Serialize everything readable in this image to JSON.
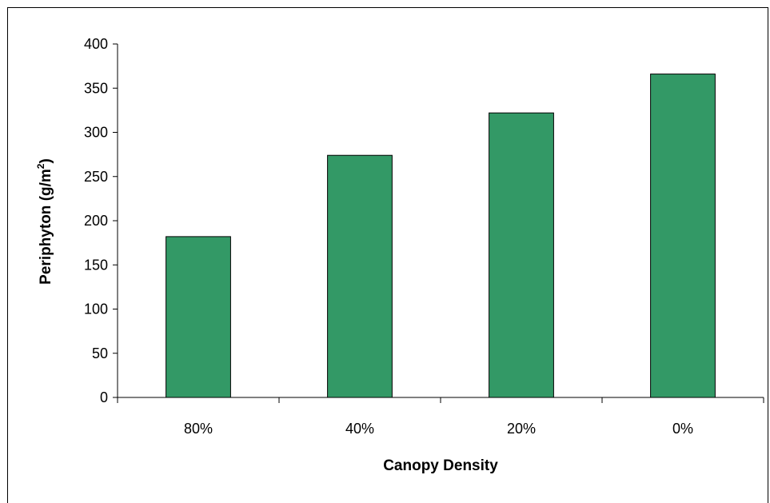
{
  "chart_data": {
    "type": "bar",
    "categories": [
      "80%",
      "40%",
      "20%",
      "0%"
    ],
    "values": [
      182,
      274,
      322,
      366
    ],
    "title": "",
    "xlabel": "Canopy Density",
    "ylabel": "Periphyton (g/m2)",
    "ylabel_main": "Periphyton (g/m",
    "ylabel_sup": "2",
    "ylabel_end": ")",
    "ylim": [
      0,
      400
    ],
    "yticks": [
      0,
      50,
      100,
      150,
      200,
      250,
      300,
      350,
      400
    ],
    "grid": false,
    "legend": "none",
    "bar_color": "#339966",
    "bar_edge_color": "#000000"
  }
}
